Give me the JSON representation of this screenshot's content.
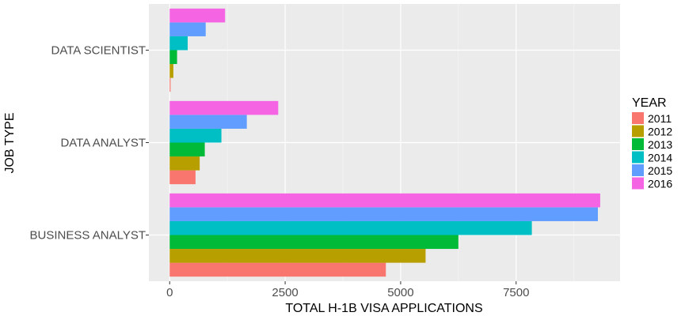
{
  "chart_data": {
    "type": "bar",
    "orientation": "horizontal",
    "title": "",
    "xlabel": "TOTAL H-1B VISA APPLICATIONS",
    "ylabel": "JOB TYPE",
    "categories": [
      "BUSINESS ANALYST",
      "DATA ANALYST",
      "DATA SCIENTIST"
    ],
    "xlim": [
      -450,
      9750
    ],
    "xticks": [
      0,
      2500,
      5000,
      7500
    ],
    "xtick_labels": [
      "0",
      "2500",
      "5000",
      "7500"
    ],
    "grid": true,
    "legend": {
      "title": "YEAR",
      "position": "right"
    },
    "series": [
      {
        "name": "2011",
        "color": "#F8766D",
        "values": [
          4680,
          560,
          20
        ]
      },
      {
        "name": "2012",
        "color": "#B79F00",
        "values": [
          5540,
          650,
          80
        ]
      },
      {
        "name": "2013",
        "color": "#00BA38",
        "values": [
          6250,
          760,
          160
        ]
      },
      {
        "name": "2014",
        "color": "#00BFC4",
        "values": [
          7840,
          1120,
          390
        ]
      },
      {
        "name": "2015",
        "color": "#619CFF",
        "values": [
          9270,
          1670,
          780
        ]
      },
      {
        "name": "2016",
        "color": "#F564E3",
        "values": [
          9320,
          2350,
          1200
        ]
      }
    ]
  }
}
